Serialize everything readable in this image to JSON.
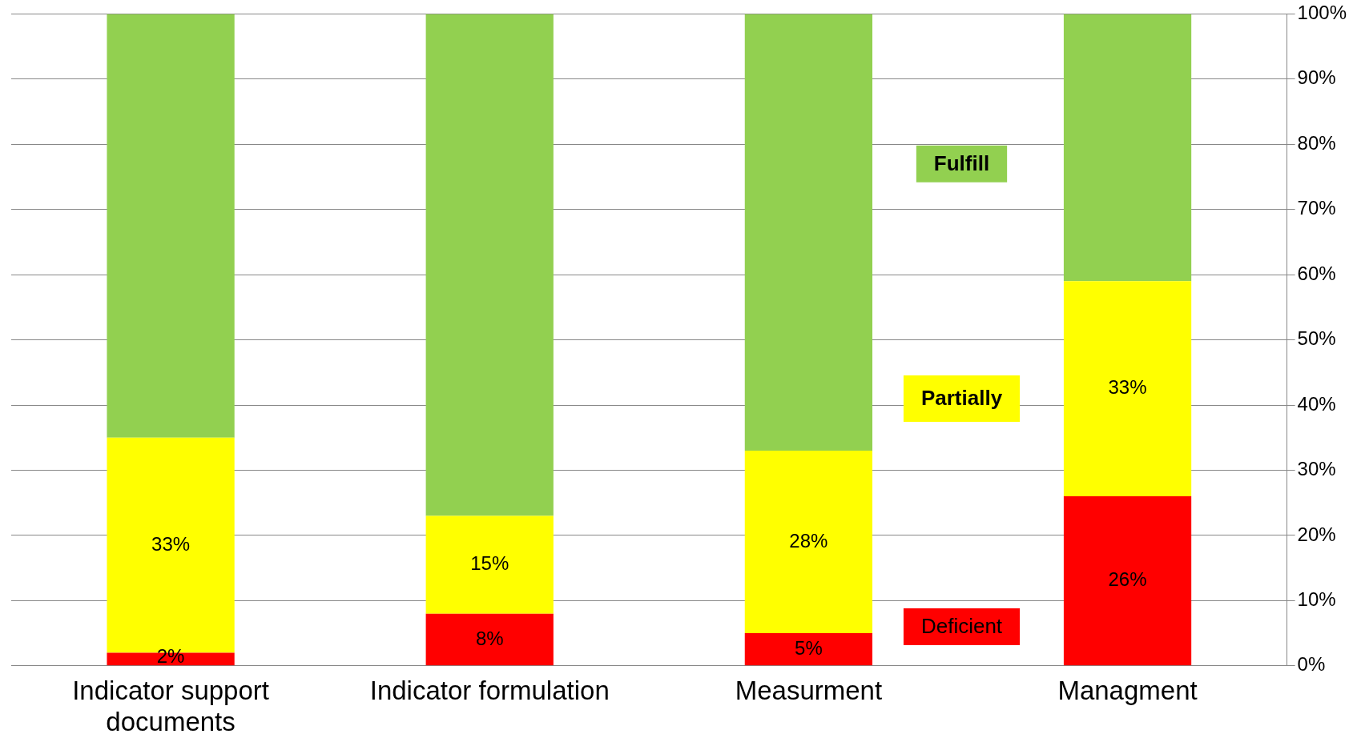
{
  "chart_data": {
    "type": "bar",
    "stacked": true,
    "categories": [
      "Indicator support documents",
      "Indicator formulation",
      "Measurment",
      "Managment"
    ],
    "series": [
      {
        "name": "Deficient",
        "color": "#ff0000",
        "values": [
          2,
          8,
          5,
          26
        ],
        "value_labels": [
          "2%",
          "8%",
          "5%",
          "26%"
        ]
      },
      {
        "name": "Partially",
        "color": "#ffff00",
        "values": [
          33,
          15,
          28,
          33
        ],
        "value_labels": [
          "33%",
          "15%",
          "28%",
          "33%"
        ]
      },
      {
        "name": "Fulfill",
        "color": "#92d050",
        "values": [
          65,
          77,
          67,
          41
        ],
        "value_labels": [
          null,
          null,
          null,
          null
        ]
      }
    ],
    "ylim": [
      0,
      100
    ],
    "yticks": [
      {
        "value": 0,
        "label": "0%"
      },
      {
        "value": 10,
        "label": "10%"
      },
      {
        "value": 20,
        "label": "20%"
      },
      {
        "value": 30,
        "label": "30%"
      },
      {
        "value": 40,
        "label": "40%"
      },
      {
        "value": 50,
        "label": "50%"
      },
      {
        "value": 60,
        "label": "60%"
      },
      {
        "value": 70,
        "label": "70%"
      },
      {
        "value": 80,
        "label": "80%"
      },
      {
        "value": 90,
        "label": "90%"
      },
      {
        "value": 100,
        "label": "100%"
      }
    ],
    "grid": "y",
    "legend": "right"
  }
}
